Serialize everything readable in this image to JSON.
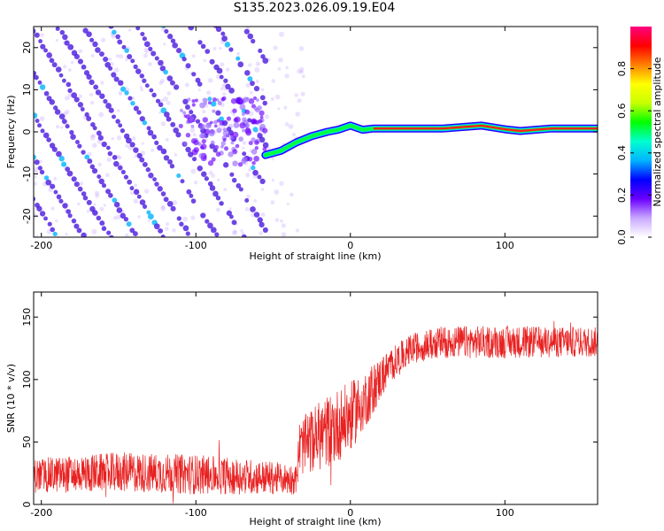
{
  "title": "S135.2023.026.09.19.E04",
  "colors": {
    "snr_line": "#e82020",
    "ridge": "#ff2020",
    "stripe": "#4a18e0",
    "axis": "#000000",
    "background": "#ffffff"
  },
  "chart_data": [
    {
      "type": "heatmap",
      "xlabel": "Height of straight line (km)",
      "ylabel": "Frequency (Hz)",
      "xlim": [
        -205,
        160
      ],
      "ylim": [
        -25,
        25
      ],
      "xticks": [
        -200,
        -100,
        0,
        100
      ],
      "yticks": [
        -20,
        -10,
        0,
        10,
        20
      ],
      "grid": false,
      "colorbar": {
        "label": "Normalized spectral amplitude",
        "range": [
          0,
          1
        ],
        "ticks": [
          "0.0",
          "0.2",
          "0.4",
          "0.6",
          "0.8"
        ],
        "colormap": [
          "#ffffff",
          "#c9a8ff",
          "#6a00ff",
          "#0000ff",
          "#00b4ff",
          "#00ffd0",
          "#00ff00",
          "#c8ff00",
          "#ffff00",
          "#ff8000",
          "#ff0000",
          "#ff0080"
        ]
      },
      "stripe_slope_hz_per_km": -0.58,
      "stripe_spacing_hz": 10,
      "stripes_end_km": -55,
      "ridge": [
        {
          "x": -55,
          "y": -5.5
        },
        {
          "x": -45,
          "y": -4.5
        },
        {
          "x": -35,
          "y": -2.5
        },
        {
          "x": -25,
          "y": -1
        },
        {
          "x": -15,
          "y": 0
        },
        {
          "x": -8,
          "y": 0.5
        },
        {
          "x": 0,
          "y": 1.5
        },
        {
          "x": 8,
          "y": 0.5
        },
        {
          "x": 15,
          "y": 0.8
        },
        {
          "x": 30,
          "y": 0.8
        },
        {
          "x": 60,
          "y": 0.8
        },
        {
          "x": 85,
          "y": 1.5
        },
        {
          "x": 100,
          "y": 0.6
        },
        {
          "x": 110,
          "y": 0.2
        },
        {
          "x": 130,
          "y": 0.8
        },
        {
          "x": 160,
          "y": 0.8
        }
      ]
    },
    {
      "type": "line",
      "xlabel": "Height of straight line (km)",
      "ylabel": "SNR (10 * v/v)",
      "xlim": [
        -205,
        160
      ],
      "ylim": [
        0,
        170
      ],
      "xticks": [
        -200,
        -100,
        0,
        100
      ],
      "yticks": [
        0,
        50,
        100,
        150
      ],
      "grid": false,
      "series": [
        {
          "envelope": [
            {
              "x": -205,
              "mean": 23,
              "spread": 14
            },
            {
              "x": -150,
              "mean": 26,
              "spread": 16
            },
            {
              "x": -100,
              "mean": 24,
              "spread": 16
            },
            {
              "x": -60,
              "mean": 22,
              "spread": 14
            },
            {
              "x": -35,
              "mean": 20,
              "spread": 12
            },
            {
              "x": -33,
              "mean": 45,
              "spread": 22
            },
            {
              "x": -20,
              "mean": 55,
              "spread": 28
            },
            {
              "x": -10,
              "mean": 62,
              "spread": 30
            },
            {
              "x": 0,
              "mean": 70,
              "spread": 28
            },
            {
              "x": 12,
              "mean": 88,
              "spread": 22
            },
            {
              "x": 25,
              "mean": 110,
              "spread": 14
            },
            {
              "x": 40,
              "mean": 125,
              "spread": 12
            },
            {
              "x": 60,
              "mean": 130,
              "spread": 13
            },
            {
              "x": 100,
              "mean": 130,
              "spread": 13
            },
            {
              "x": 160,
              "mean": 130,
              "spread": 12
            }
          ]
        }
      ]
    }
  ]
}
